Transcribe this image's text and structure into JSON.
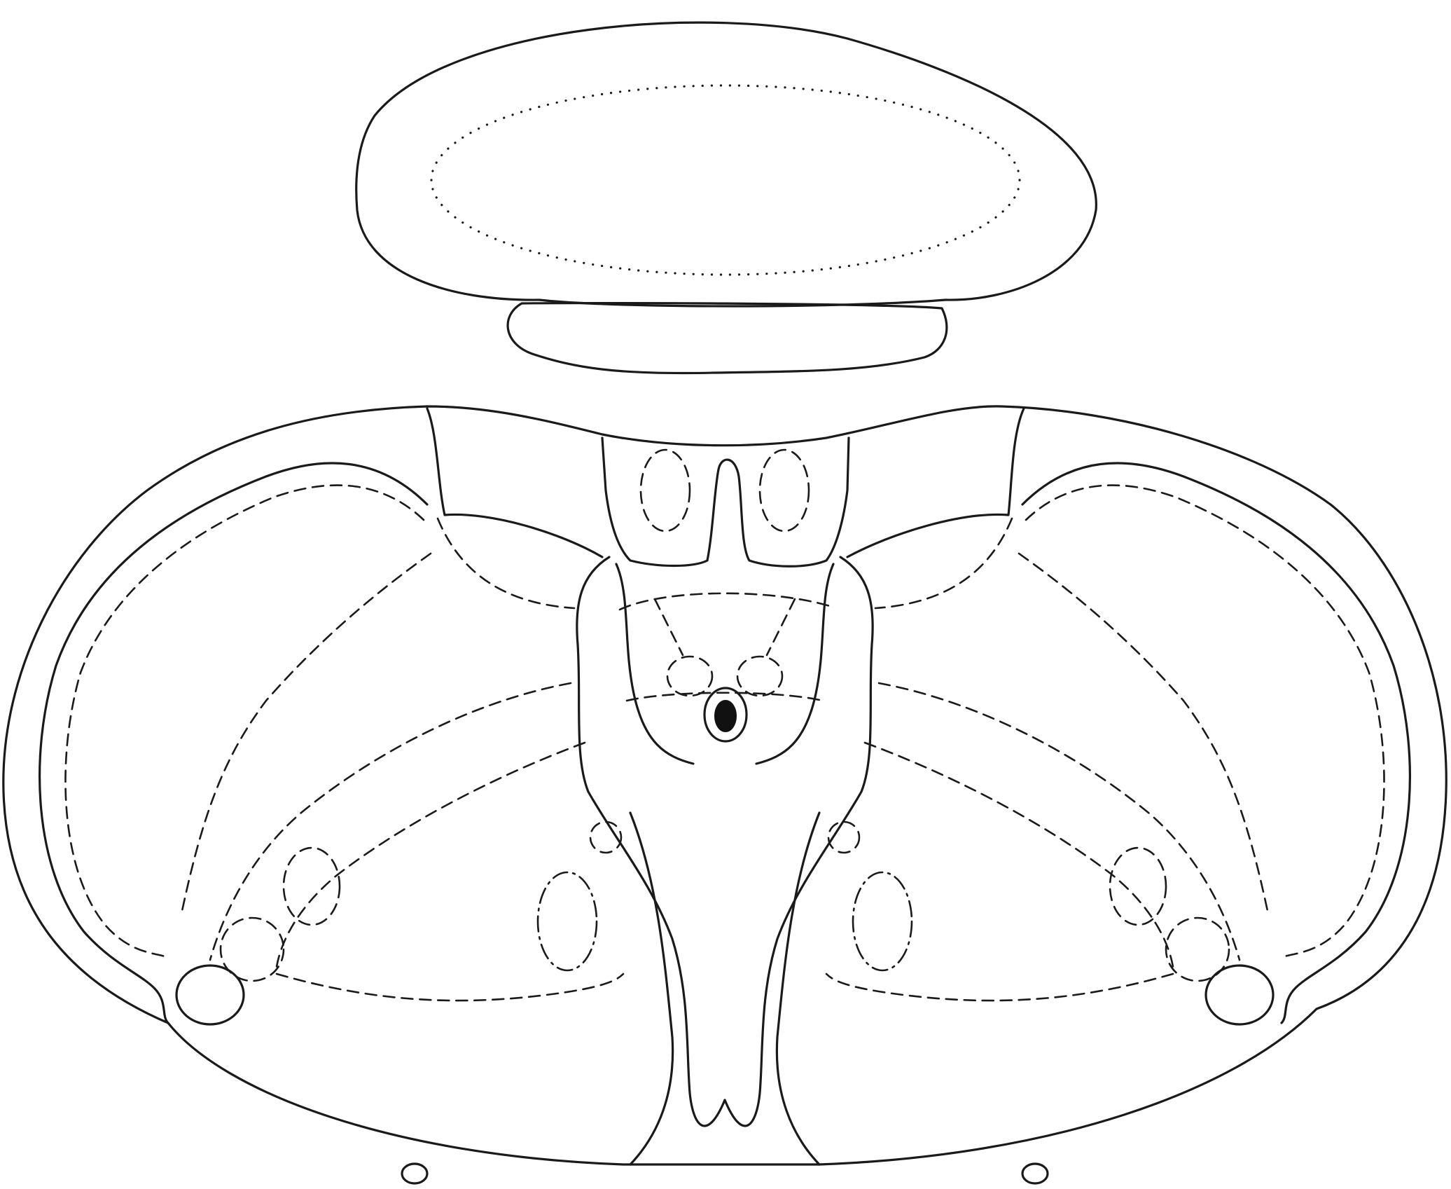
{
  "diagram": {
    "background": "#ffffff",
    "line_color": "#1a1a1a",
    "line_styles": [
      "solid",
      "dashed",
      "dotted",
      "dash-dot"
    ]
  }
}
